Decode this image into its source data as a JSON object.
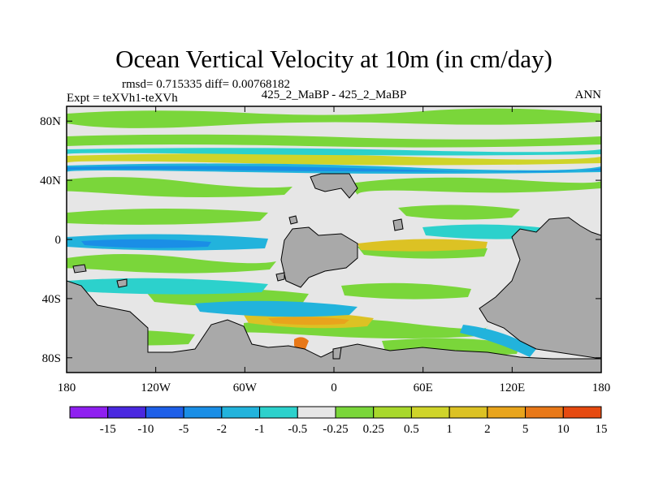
{
  "chart_data": {
    "type": "heatmap",
    "title": "Ocean Vertical Velocity at 10m (in cm/day)",
    "stats_line": "rmsd= 0.715335 diff= 0.00768182",
    "left_label": "Expt = teXVh1-teXVh",
    "center_label": "425_2_MaBP - 425_2_MaBP",
    "right_label": "ANN",
    "x_axis": {
      "range": [
        -180,
        180
      ],
      "tick_values": [
        -180,
        -120,
        -60,
        0,
        60,
        120,
        180
      ],
      "tick_labels": [
        "180",
        "120W",
        "60W",
        "0",
        "60E",
        "120E",
        "180"
      ]
    },
    "y_axis": {
      "range": [
        -90,
        90
      ],
      "tick_values": [
        80,
        40,
        0,
        -40,
        -80
      ],
      "tick_labels": [
        "80N",
        "40N",
        "0",
        "40S",
        "80S"
      ]
    },
    "colorbar": {
      "labels": [
        "-15",
        "-10",
        "-5",
        "-2",
        "-1",
        "-0.5",
        "-0.25",
        "0.25",
        "0.5",
        "1",
        "2",
        "5",
        "10",
        "15"
      ],
      "colors": [
        "#8f1ff0",
        "#4a28e0",
        "#1e5fe8",
        "#1a8ee6",
        "#22b3dc",
        "#2cd1cc",
        "#e6e6e6",
        "#7ad63a",
        "#a8d82c",
        "#cfd42a",
        "#dcc224",
        "#e8a41c",
        "#e87818",
        "#e64a10"
      ]
    },
    "colors": {
      "land": "#a9a9a9",
      "near_zero": "#e6e6e6"
    }
  }
}
